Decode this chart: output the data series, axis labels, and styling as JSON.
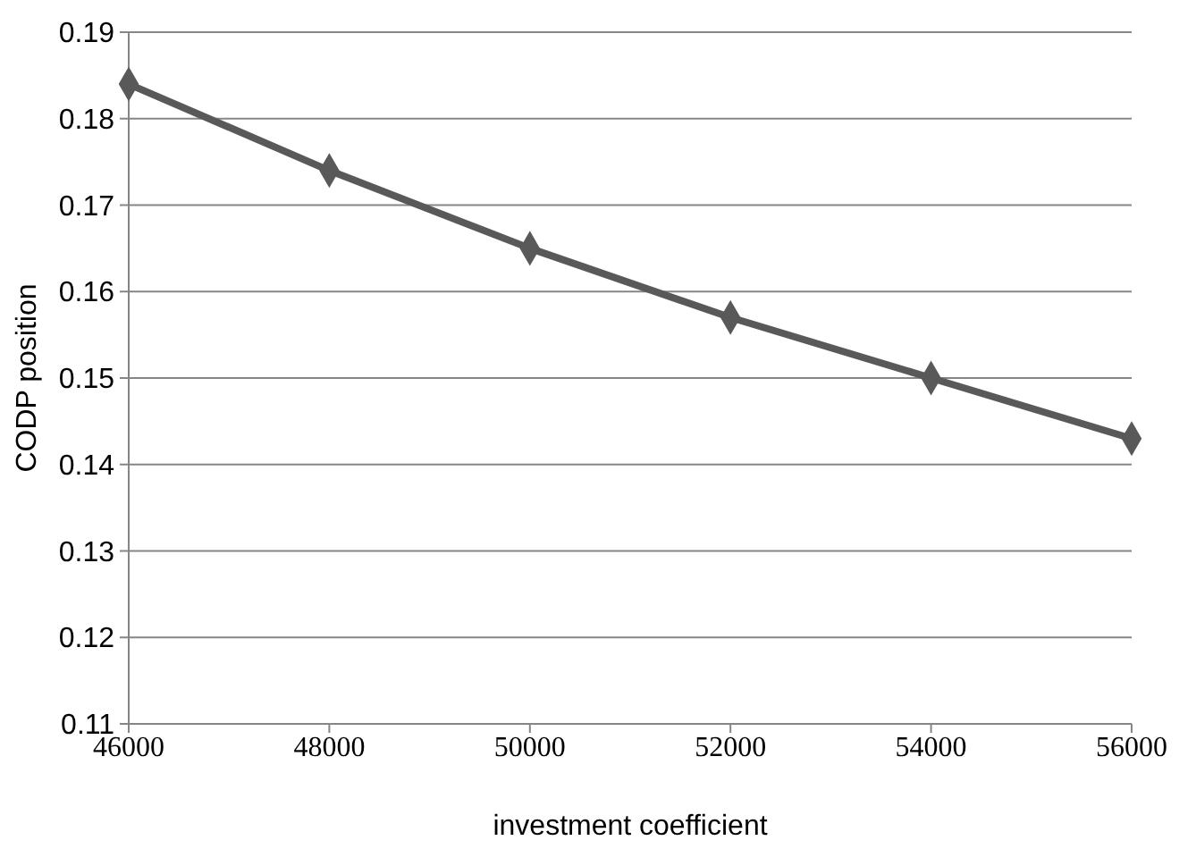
{
  "chart_data": {
    "type": "line",
    "xlabel": "investment coefficient",
    "ylabel": "CODP position",
    "x": [
      46000,
      48000,
      50000,
      52000,
      54000,
      56000
    ],
    "series": [
      {
        "color": "#595959",
        "values": [
          0.184,
          0.174,
          0.165,
          0.157,
          0.15,
          0.143
        ]
      }
    ],
    "xlim": [
      46000,
      56000
    ],
    "xticks": [
      46000,
      48000,
      50000,
      52000,
      54000,
      56000
    ],
    "ylim": [
      0.11,
      0.19
    ],
    "yticks": [
      {
        "value": 0.11,
        "label": "0.11"
      },
      {
        "value": 0.12,
        "label": "0.12"
      },
      {
        "value": 0.13,
        "label": "0.13"
      },
      {
        "value": 0.14,
        "label": "0.14"
      },
      {
        "value": 0.15,
        "label": "0.15"
      },
      {
        "value": 0.16,
        "label": "0.16"
      },
      {
        "value": 0.17,
        "label": "0.17"
      },
      {
        "value": 0.18,
        "label": "0.18"
      },
      {
        "value": 0.19,
        "label": "0.19"
      }
    ],
    "grid": "y",
    "marker": "diamond",
    "line_style": "solid"
  }
}
